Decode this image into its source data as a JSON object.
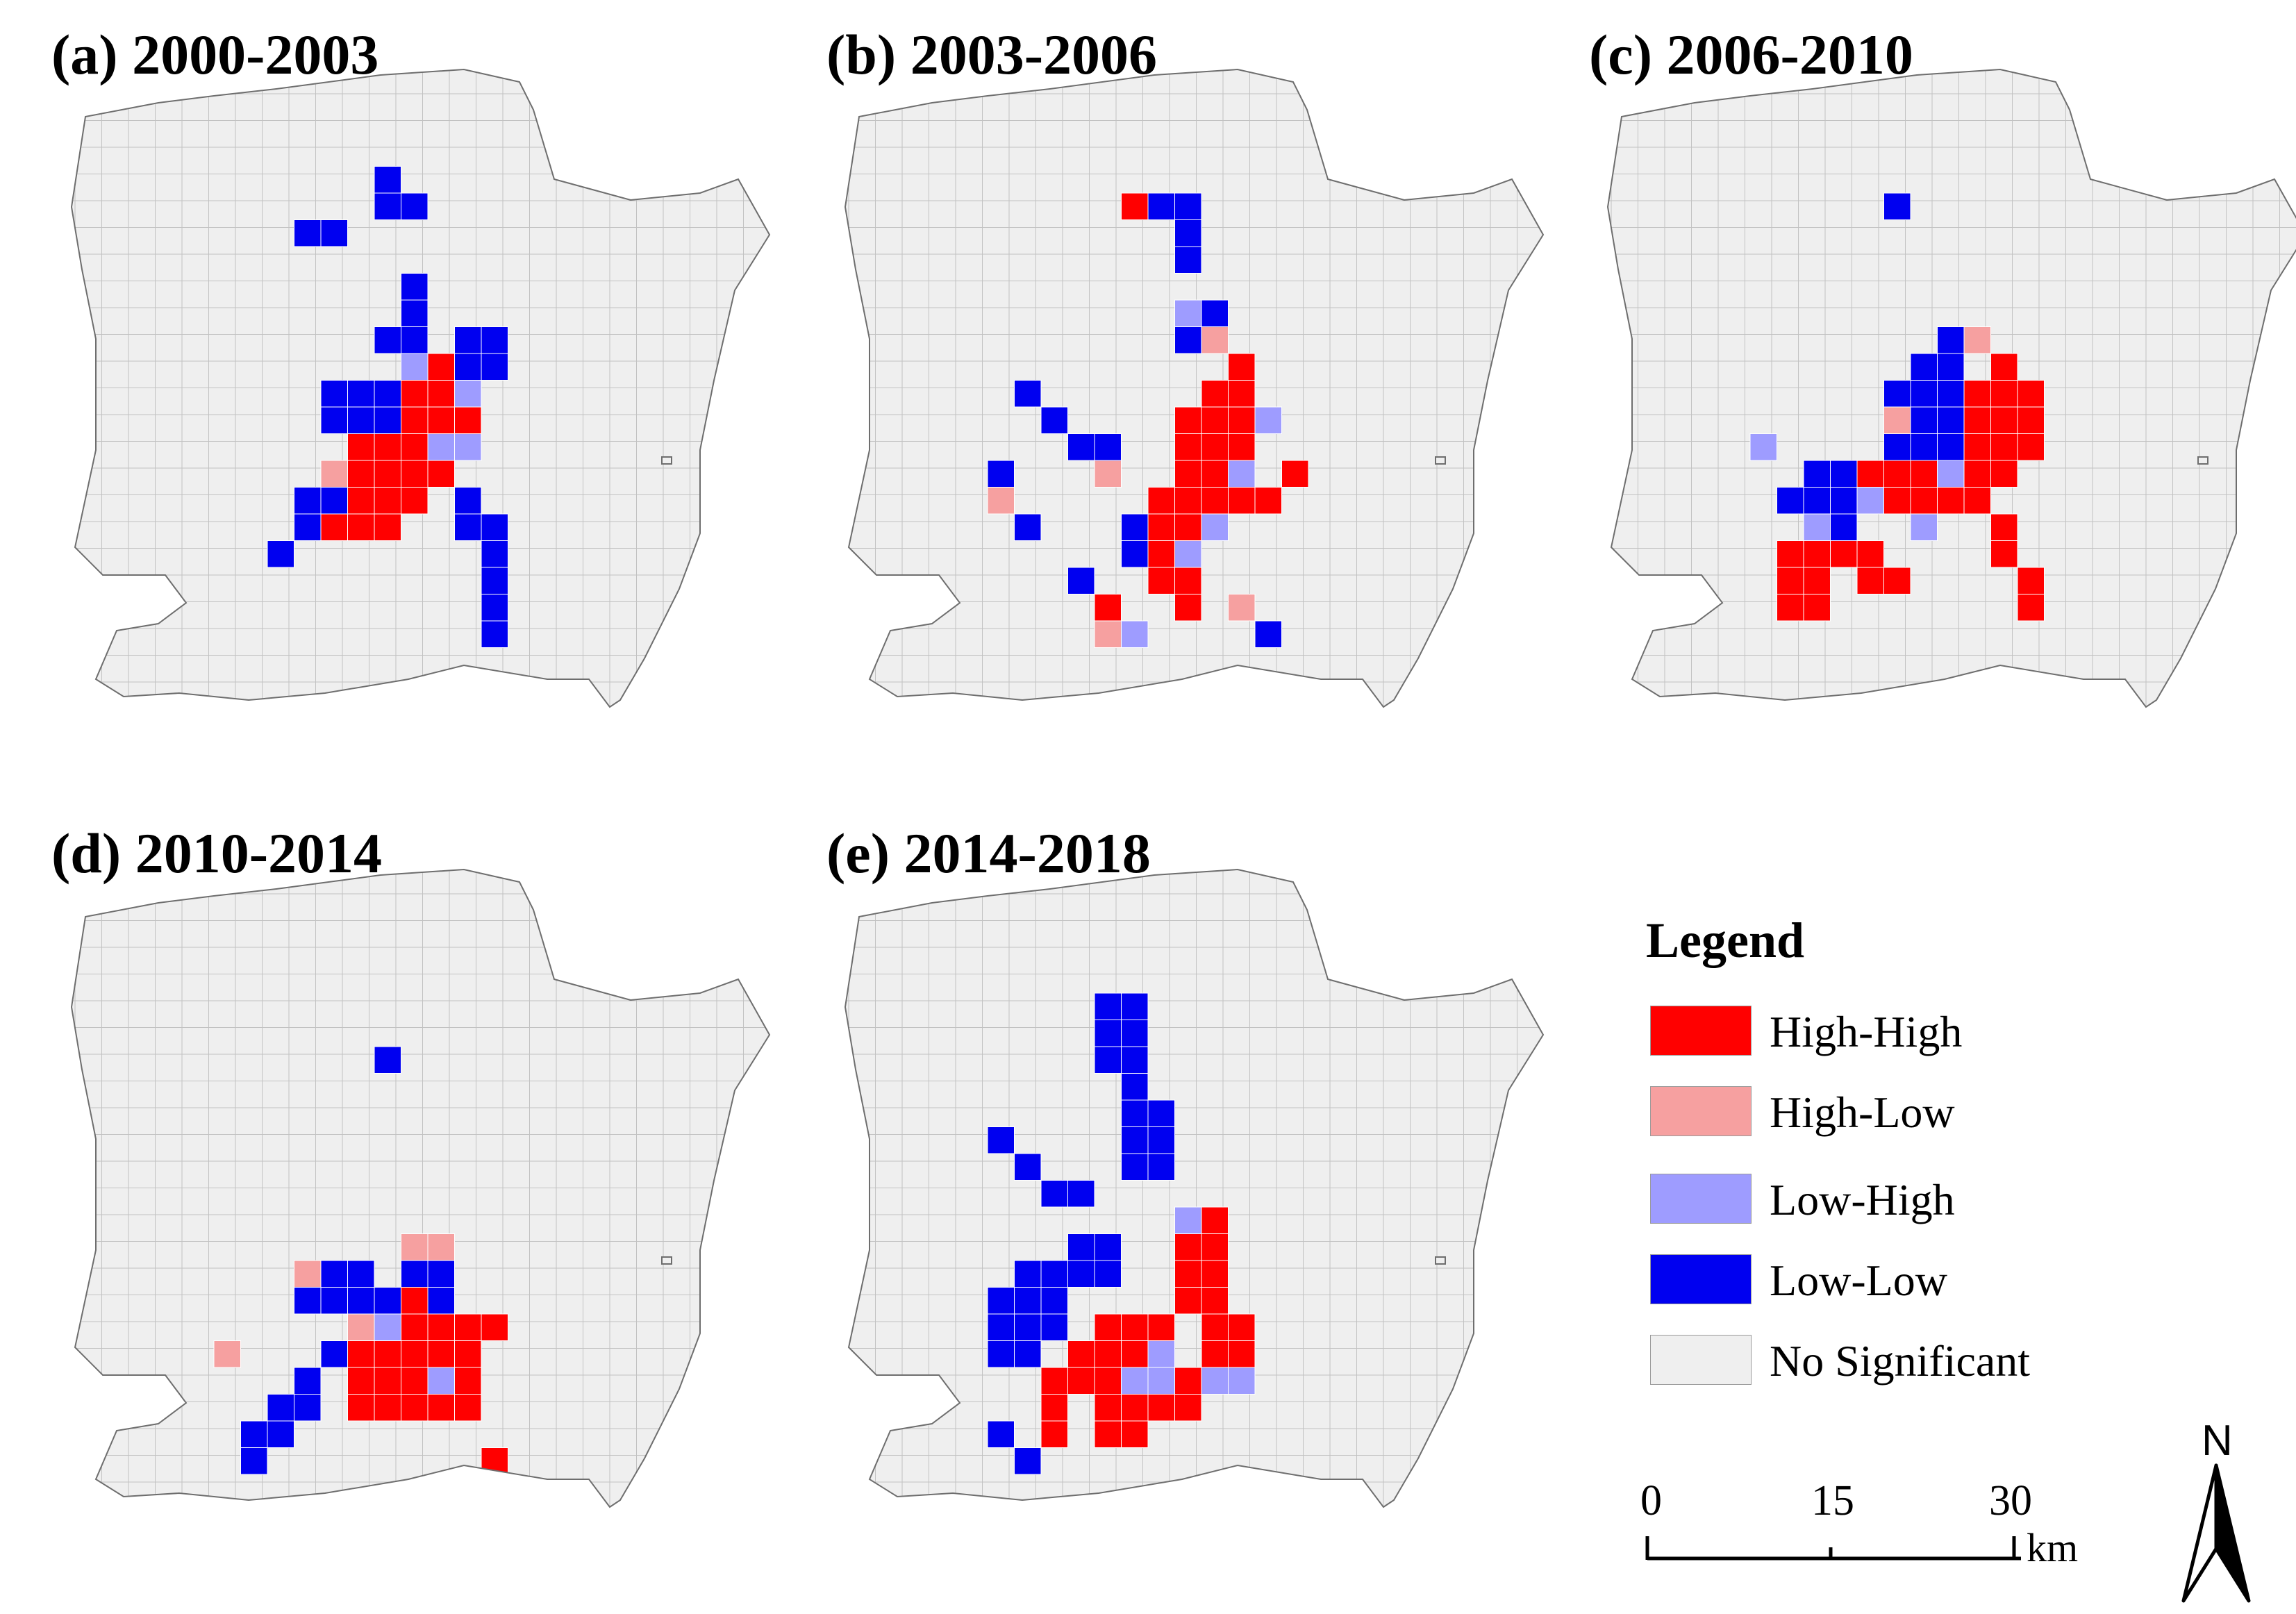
{
  "panels": [
    {
      "title": "(a) 2000-2003"
    },
    {
      "title": "(b) 2003-2006"
    },
    {
      "title": "(c) 2006-2010"
    },
    {
      "title": "(d) 2010-2014"
    },
    {
      "title": "(e) 2014-2018"
    }
  ],
  "legend": {
    "title": "Legend",
    "items": [
      {
        "label": "High-High",
        "color": "#ff0000"
      },
      {
        "label": "High-Low",
        "color": "#f6a0a0"
      },
      {
        "label": "Low-High",
        "color": "#9e9cff"
      },
      {
        "label": "Low-Low",
        "color": "#0000f0"
      },
      {
        "label": "No Significant",
        "color": "#efefef"
      }
    ]
  },
  "scale_bar": {
    "ticks": [
      "0",
      "15",
      "30"
    ],
    "unit": "km"
  },
  "north_arrow": {
    "label": "N"
  }
}
